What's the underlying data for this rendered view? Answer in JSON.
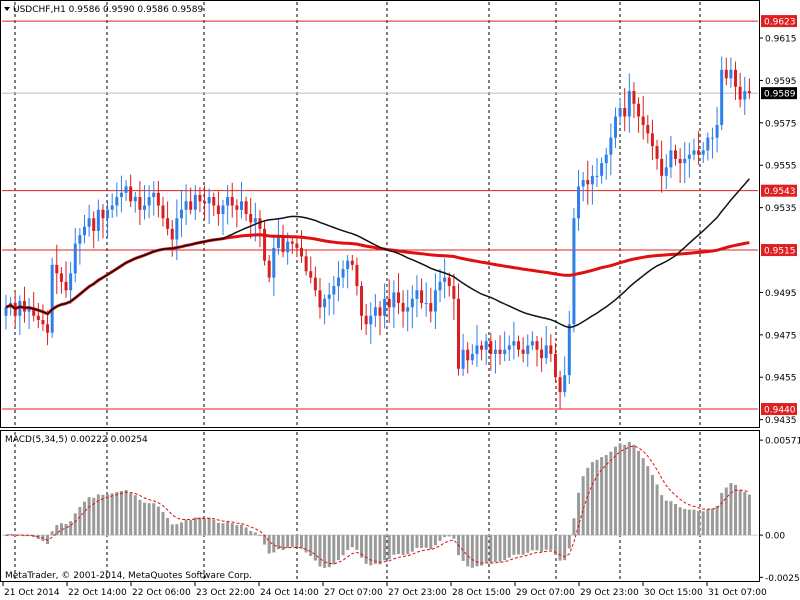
{
  "symbol_header": "USDCHF,H1  0.9586 0.9590 0.9586 0.9589",
  "macd_header": "MACD(5,34,5) 0.00222 0.00254",
  "copyright": "MetaTrader, © 2001-2014, MetaQuotes Software Corp.",
  "colors": {
    "bull": "#2e7fe8",
    "bear": "#d81e1e",
    "hline": "#e02020",
    "ma_fast": "#111111",
    "ma_slow": "#e01010",
    "macd_hist": "#9a9a9a",
    "macd_signal": "#e01010",
    "grid": "#000000",
    "axis_bg": "#ffffff"
  },
  "chart_data": [
    {
      "type": "candlestick",
      "symbol": "USDCHF",
      "timeframe": "H1",
      "price_tick_labels": [
        "0.9615",
        "0.9595",
        "0.9575",
        "0.9555",
        "0.9535",
        "0.9495",
        "0.9475",
        "0.9455",
        "0.9435"
      ],
      "price_ticks": [
        0.9615,
        0.9595,
        0.9575,
        0.9555,
        0.9535,
        0.9495,
        0.9475,
        0.9455,
        0.9435
      ],
      "ylim": [
        0.9432,
        0.9632
      ],
      "horizontal_levels": [
        {
          "value": 0.9623,
          "label": "0.9623"
        },
        {
          "value": 0.9543,
          "label": "0.9543"
        },
        {
          "value": 0.9515,
          "label": "0.9515"
        },
        {
          "value": 0.944,
          "label": "0.9440"
        }
      ],
      "current_price": {
        "value": 0.9589,
        "label": "0.9589"
      },
      "x_tick_labels": [
        "21 Oct 2014",
        "22 Oct 14:00",
        "22 Oct 06:00",
        "23 Oct 22:00",
        "24 Oct 14:00",
        "27 Oct 07:00",
        "27 Oct 23:00",
        "28 Oct 15:00",
        "29 Oct 07:00",
        "29 Oct 23:00",
        "30 Oct 15:00",
        "31 Oct 07:00"
      ],
      "closes": [
        0.9488,
        0.949,
        0.9484,
        0.9491,
        0.9486,
        0.9488,
        0.9484,
        0.9482,
        0.948,
        0.9476,
        0.9508,
        0.9504,
        0.95,
        0.9496,
        0.9504,
        0.9518,
        0.9522,
        0.9526,
        0.953,
        0.9524,
        0.9534,
        0.953,
        0.9534,
        0.9536,
        0.954,
        0.9542,
        0.9545,
        0.9538,
        0.954,
        0.9534,
        0.9536,
        0.954,
        0.9542,
        0.9536,
        0.953,
        0.9525,
        0.952,
        0.953,
        0.9534,
        0.9538,
        0.9534,
        0.9541,
        0.9538,
        0.9537,
        0.954,
        0.9536,
        0.9532,
        0.9536,
        0.954,
        0.9536,
        0.9534,
        0.9538,
        0.9532,
        0.9528,
        0.953,
        0.9525,
        0.951,
        0.9502,
        0.9516,
        0.9521,
        0.9514,
        0.9519,
        0.9518,
        0.9516,
        0.9512,
        0.9505,
        0.9502,
        0.9496,
        0.9488,
        0.9492,
        0.9494,
        0.9498,
        0.9502,
        0.9506,
        0.951,
        0.9508,
        0.9498,
        0.9484,
        0.948,
        0.9484,
        0.9488,
        0.9484,
        0.9492,
        0.9488,
        0.9495,
        0.949,
        0.9486,
        0.9488,
        0.9492,
        0.9496,
        0.949,
        0.949,
        0.9486,
        0.9496,
        0.95,
        0.9502,
        0.9498,
        0.9492,
        0.9459,
        0.9468,
        0.9463,
        0.9466,
        0.947,
        0.9468,
        0.9472,
        0.9466,
        0.9468,
        0.9466,
        0.9468,
        0.947,
        0.9472,
        0.9468,
        0.9466,
        0.947,
        0.9472,
        0.9468,
        0.9464,
        0.947,
        0.9466,
        0.9455,
        0.9448,
        0.9456,
        0.948,
        0.953,
        0.9545,
        0.9548,
        0.9546,
        0.955,
        0.955,
        0.9556,
        0.956,
        0.9568,
        0.9578,
        0.9582,
        0.9578,
        0.959,
        0.9584,
        0.9578,
        0.9574,
        0.957,
        0.9564,
        0.9558,
        0.955,
        0.9554,
        0.9562,
        0.9558,
        0.9556,
        0.9558,
        0.956,
        0.9562,
        0.956,
        0.9562,
        0.9568,
        0.9568,
        0.9574,
        0.96,
        0.9596,
        0.96,
        0.9592,
        0.9586,
        0.959,
        0.9589
      ],
      "ma_fast_label": "",
      "ma_slow_label": ""
    },
    {
      "type": "histogram",
      "indicator": "MACD(5,34,5)",
      "values_label": "0.00222 0.00254",
      "tick_labels": [
        "0.00571",
        "0.00",
        "-0.00254"
      ],
      "ticks": [
        0.00571,
        0.0,
        -0.00254
      ],
      "ylim": [
        -0.0027,
        0.0062
      ]
    }
  ]
}
